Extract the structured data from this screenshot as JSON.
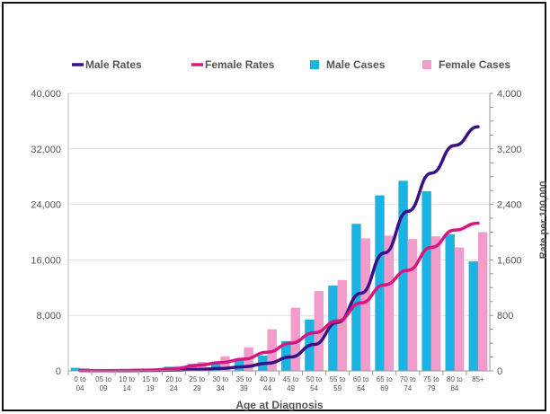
{
  "chart_data": {
    "type": "bar",
    "categories": [
      [
        "0 to",
        "04"
      ],
      [
        "05 to",
        "09"
      ],
      [
        "10 to",
        "14"
      ],
      [
        "15 to",
        "19"
      ],
      [
        "20 to",
        "24"
      ],
      [
        "25 to",
        "29"
      ],
      [
        "30 to",
        "34"
      ],
      [
        "35 to",
        "39"
      ],
      [
        "40 to",
        "44"
      ],
      [
        "45 to",
        "49"
      ],
      [
        "50 to",
        "54"
      ],
      [
        "55 to",
        "59"
      ],
      [
        "60 to",
        "64"
      ],
      [
        "65 to",
        "69"
      ],
      [
        "70 to",
        "74"
      ],
      [
        "75 to",
        "79"
      ],
      [
        "80 to",
        "84"
      ],
      [
        "85+"
      ]
    ],
    "xlabel": "Age at Diagnosis",
    "ylabel_right": "Rate per 100,000",
    "ylim_left": [
      0,
      40000
    ],
    "ylim_right": [
      0,
      4000
    ],
    "yticks_left": [
      "0",
      "8,000",
      "16,000",
      "24,000",
      "32,000",
      "40,000"
    ],
    "yticks_right": [
      "0",
      "800",
      "1,600",
      "2,400",
      "3,200",
      "4,000"
    ],
    "legend_position": "top",
    "series": [
      {
        "name": "Male Rates",
        "type": "line",
        "axis": "right",
        "color": "#3b0f86",
        "values": [
          5,
          3,
          4,
          6,
          10,
          20,
          35,
          60,
          110,
          200,
          380,
          700,
          1120,
          1700,
          2300,
          2850,
          3250,
          3520
        ]
      },
      {
        "name": "Female Rates",
        "type": "line",
        "axis": "right",
        "color": "#d8177e",
        "values": [
          5,
          4,
          6,
          12,
          30,
          80,
          120,
          170,
          270,
          400,
          550,
          720,
          980,
          1240,
          1450,
          1780,
          2030,
          2130
        ]
      },
      {
        "name": "Male Cases",
        "type": "bar",
        "axis": "left",
        "color": "#1bb3e2",
        "values": [
          450,
          80,
          90,
          150,
          600,
          1000,
          1200,
          1600,
          2200,
          4300,
          7400,
          12300,
          21200,
          25300,
          27400,
          25900,
          19700,
          15800
        ]
      },
      {
        "name": "Female Cases",
        "type": "bar",
        "axis": "left",
        "color": "#f29ccb",
        "values": [
          380,
          90,
          110,
          200,
          700,
          1300,
          2100,
          3400,
          6000,
          9100,
          11500,
          13100,
          19100,
          19500,
          19000,
          19400,
          17800,
          20000
        ]
      }
    ]
  }
}
